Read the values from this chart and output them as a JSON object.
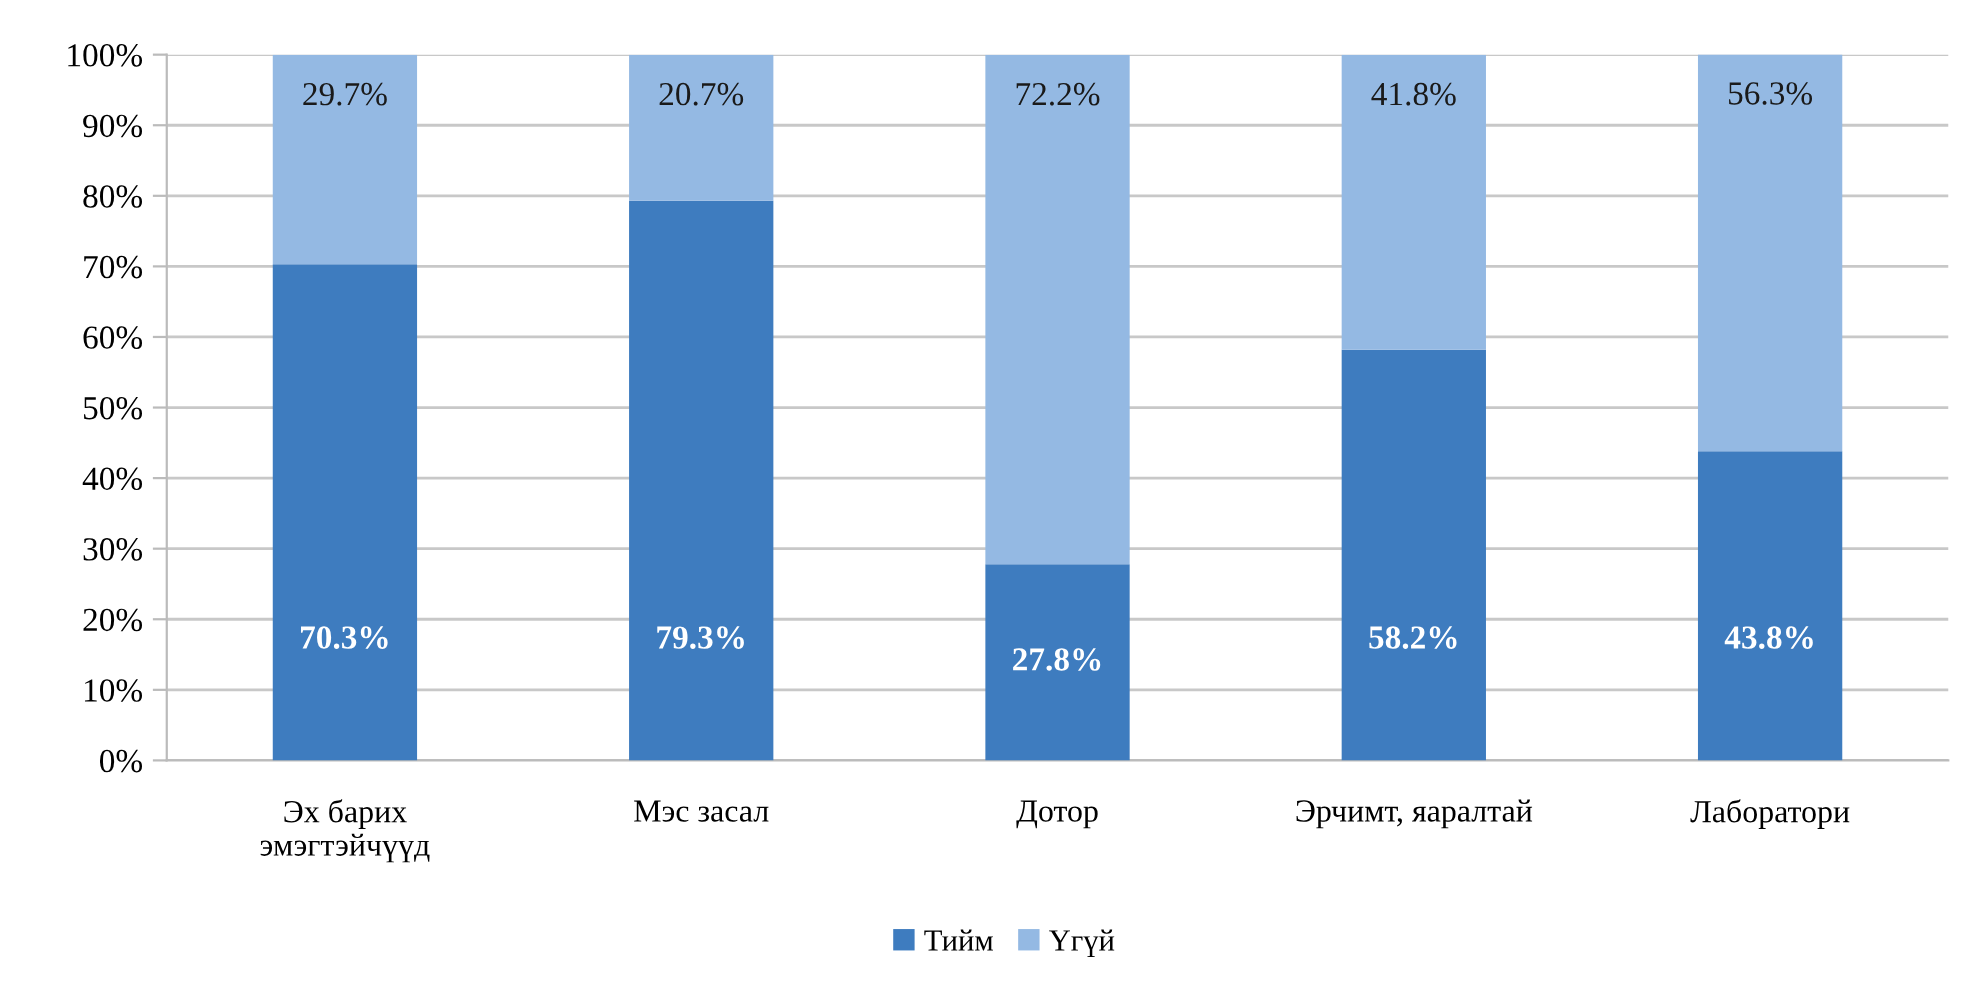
{
  "chart_data": {
    "type": "bar",
    "stacked": true,
    "categories": [
      "Эх барих\nэмэгтэйчүүд",
      "Мэс засал",
      "Дотор",
      "Эрчимт, яаралтай",
      "Лаборатори"
    ],
    "series": [
      {
        "name": "Тийм",
        "color": "#3e7cbf",
        "values": [
          70.3,
          79.3,
          27.8,
          58.2,
          43.8
        ],
        "value_labels": [
          "70.3%",
          "79.3%",
          "27.8%",
          "58.2%",
          "43.8%"
        ]
      },
      {
        "name": "Үгүй",
        "color": "#94b9e3",
        "values": [
          29.7,
          20.7,
          72.2,
          41.8,
          56.3
        ],
        "value_labels": [
          "29.7%",
          "20.7%",
          "72.2%",
          "41.8%",
          "56.3%"
        ]
      }
    ],
    "ylim": [
      0,
      100
    ],
    "yticks": [
      {
        "value": 0,
        "label": "0%"
      },
      {
        "value": 10,
        "label": "10%"
      },
      {
        "value": 20,
        "label": "20%"
      },
      {
        "value": 30,
        "label": "30%"
      },
      {
        "value": 40,
        "label": "40%"
      },
      {
        "value": 50,
        "label": "50%"
      },
      {
        "value": 60,
        "label": "60%"
      },
      {
        "value": 70,
        "label": "70%"
      },
      {
        "value": 80,
        "label": "80%"
      },
      {
        "value": 90,
        "label": "90%"
      },
      {
        "value": 100,
        "label": "100%"
      }
    ],
    "grid": "y",
    "legend": "bottom"
  }
}
